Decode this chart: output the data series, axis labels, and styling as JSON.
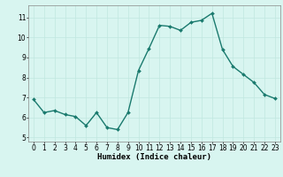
{
  "x": [
    0,
    1,
    2,
    3,
    4,
    5,
    6,
    7,
    8,
    9,
    10,
    11,
    12,
    13,
    14,
    15,
    16,
    17,
    18,
    19,
    20,
    21,
    22,
    23
  ],
  "y": [
    6.9,
    6.25,
    6.35,
    6.15,
    6.05,
    5.6,
    6.25,
    5.5,
    5.4,
    6.25,
    8.35,
    9.45,
    10.6,
    10.55,
    10.35,
    10.75,
    10.85,
    11.2,
    9.4,
    8.55,
    8.15,
    7.75,
    7.15,
    6.95
  ],
  "xlabel": "Humidex (Indice chaleur)",
  "ylim": [
    4.8,
    11.6
  ],
  "xlim": [
    -0.5,
    23.5
  ],
  "yticks": [
    5,
    6,
    7,
    8,
    9,
    10,
    11
  ],
  "xticks": [
    0,
    1,
    2,
    3,
    4,
    5,
    6,
    7,
    8,
    9,
    10,
    11,
    12,
    13,
    14,
    15,
    16,
    17,
    18,
    19,
    20,
    21,
    22,
    23
  ],
  "line_color": "#1a7a6e",
  "marker_color": "#1a7a6e",
  "bg_color": "#d8f5f0",
  "grid_color": "#c0e8e0",
  "tick_fontsize": 5.5,
  "xlabel_fontsize": 6.5,
  "line_width": 1.0,
  "marker_size": 2.0
}
